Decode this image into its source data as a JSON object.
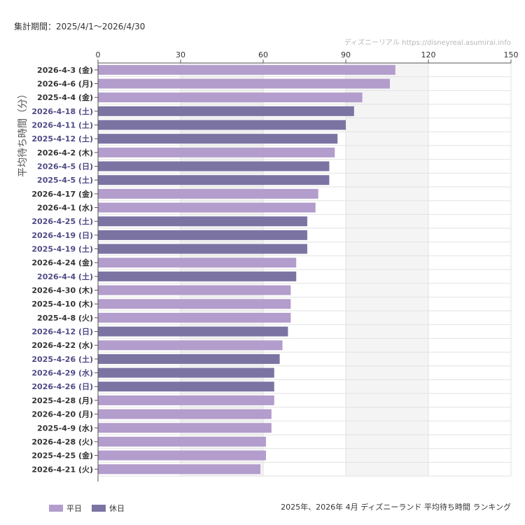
{
  "header": {
    "period": "集計期間：2025/4/1〜2026/4/30",
    "credit": "ディズニーリアル  https://disneyreal.asumirai.info"
  },
  "footer": {
    "title": "2025年、2026年 4月 ディズニーランド 平均待ち時間 ランキング"
  },
  "colors": {
    "weekday": "#b39dcc",
    "holiday": "#7b74a3",
    "weekday_label": "#333333",
    "holiday_label": "#4f4a86",
    "shade": "#f4f4f4",
    "grid": "#e2e2e2"
  },
  "legend": [
    {
      "label": "平日",
      "color": "#b39dcc"
    },
    {
      "label": "休日",
      "color": "#7b74a3"
    }
  ],
  "chart_data": {
    "type": "bar",
    "orientation": "horizontal",
    "ylabel": "平均待ち時間（分）",
    "xlim": [
      0,
      150
    ],
    "xticks": [
      0,
      30,
      60,
      90,
      120,
      150
    ],
    "x_axis_position": "top",
    "grid": true,
    "categories": [
      "2026-4-3 (金)",
      "2026-4-6 (月)",
      "2025-4-4 (金)",
      "2026-4-18 (土)",
      "2026-4-11 (土)",
      "2025-4-12 (土)",
      "2026-4-2 (木)",
      "2026-4-5 (日)",
      "2025-4-5 (土)",
      "2026-4-17 (金)",
      "2026-4-1 (水)",
      "2026-4-25 (土)",
      "2026-4-19 (日)",
      "2025-4-19 (土)",
      "2026-4-24 (金)",
      "2026-4-4 (土)",
      "2026-4-30 (木)",
      "2025-4-10 (木)",
      "2025-4-8 (火)",
      "2026-4-12 (日)",
      "2026-4-22 (水)",
      "2025-4-26 (土)",
      "2026-4-29 (水)",
      "2026-4-26 (日)",
      "2025-4-28 (月)",
      "2026-4-20 (月)",
      "2025-4-9 (水)",
      "2026-4-28 (火)",
      "2025-4-25 (金)",
      "2026-4-21 (火)"
    ],
    "values": [
      108,
      106,
      96,
      93,
      90,
      87,
      86,
      84,
      84,
      80,
      79,
      76,
      76,
      76,
      72,
      72,
      70,
      70,
      70,
      69,
      67,
      66,
      64,
      64,
      64,
      63,
      63,
      61,
      61,
      59
    ],
    "day_type": [
      "weekday",
      "weekday",
      "weekday",
      "holiday",
      "holiday",
      "holiday",
      "weekday",
      "holiday",
      "holiday",
      "weekday",
      "weekday",
      "holiday",
      "holiday",
      "holiday",
      "weekday",
      "holiday",
      "weekday",
      "weekday",
      "weekday",
      "holiday",
      "weekday",
      "holiday",
      "holiday",
      "holiday",
      "weekday",
      "weekday",
      "weekday",
      "weekday",
      "weekday",
      "weekday"
    ]
  }
}
